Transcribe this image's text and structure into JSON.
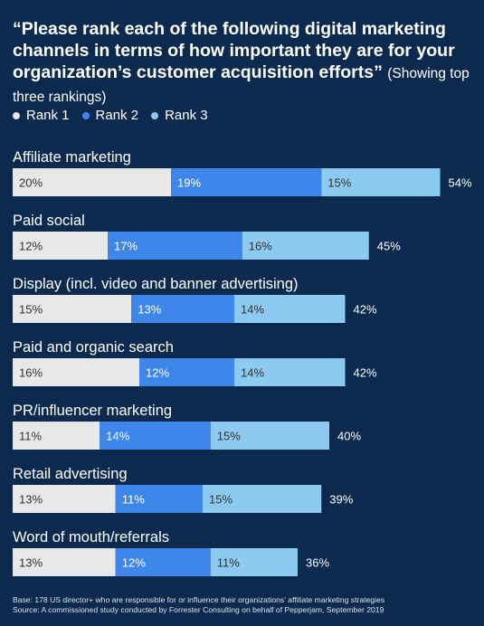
{
  "title": {
    "question": "“Please rank each of the following digital marketing channels in terms of how important they are for your organization’s customer acquisition efforts”",
    "subtitle": "(Showing top three rankings)"
  },
  "colors": {
    "background": "#0b2a4d",
    "rank1": "#e6e8ea",
    "rank2": "#3f86ea",
    "rank3": "#8ccaf1"
  },
  "chart_data": {
    "type": "bar",
    "orientation": "horizontal",
    "stacked": true,
    "categories": [
      "Affiliate marketing",
      "Paid social",
      "Display (incl. video and banner advertising)",
      "Paid and organic search",
      "PR/influencer marketing",
      "Retail advertising",
      "Word of mouth/referrals"
    ],
    "series": [
      {
        "name": "Rank 1",
        "values": [
          20,
          12,
          15,
          16,
          11,
          13,
          13
        ]
      },
      {
        "name": "Rank 2",
        "values": [
          19,
          17,
          13,
          12,
          14,
          11,
          12
        ]
      },
      {
        "name": "Rank 3",
        "values": [
          15,
          16,
          14,
          14,
          15,
          15,
          11
        ]
      }
    ],
    "totals": [
      54,
      45,
      42,
      42,
      40,
      39,
      36
    ],
    "unit": "%",
    "legend_placement": "top-left",
    "grid": false
  },
  "notes": {
    "base": "Base: 178 US director+ who are responsible for or influence their organizations’ affiliate marketing strategies",
    "source": "Source: A commissioned study conducted by Forrester Consulting on behalf of Pepperjam, September 2019"
  }
}
